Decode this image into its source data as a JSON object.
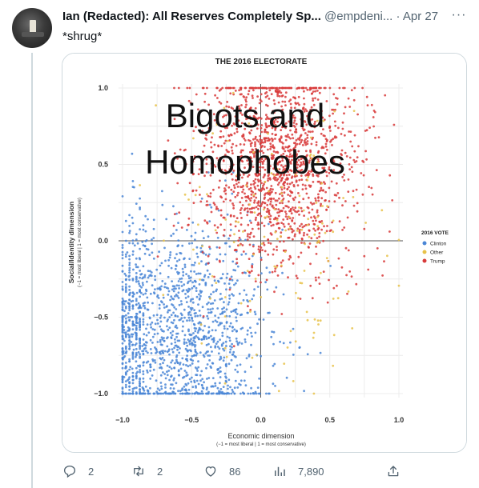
{
  "tweet": {
    "display_name": "Ian (Redacted): All Reserves Completely Sp...",
    "handle": "@empdeni...",
    "separator": "·",
    "date": "Apr 27",
    "text": "*shrug*"
  },
  "actions": {
    "replies": "2",
    "retweets": "2",
    "likes": "86",
    "views": "7,890"
  },
  "image": {
    "overlay_text_line1": "Bigots and",
    "overlay_text_line2": "Homophobes"
  },
  "chart_data": {
    "type": "scatter",
    "title": "THE 2016 ELECTORATE",
    "xlabel": "Economic dimension",
    "xlabel_sub": "(−1 = most liberal | 1 = most conservative)",
    "ylabel": "Social/Identity dimension",
    "ylabel_sub": "(−1 = most liberal | 1 = most conservative)",
    "xlim": [
      -1.0,
      1.0
    ],
    "ylim": [
      -1.0,
      1.0
    ],
    "x_ticks": [
      "−1.0",
      "−0.5",
      "0.0",
      "0.5",
      "1.0"
    ],
    "y_ticks": [
      "1.0",
      "0.5",
      "0.0",
      "−0.5",
      "−1.0"
    ],
    "grid": true,
    "legend_position": "right",
    "legend_title": "2016 VOTE",
    "series": [
      {
        "name": "Clinton",
        "color": "#4a86d6",
        "center": [
          -0.55,
          -0.6
        ],
        "spread": [
          0.3,
          0.35
        ],
        "count": 1500
      },
      {
        "name": "Other",
        "color": "#e8c24a",
        "center": [
          0.15,
          0.0
        ],
        "spread": [
          0.4,
          0.45
        ],
        "count": 160
      },
      {
        "name": "Trump",
        "color": "#d83a3a",
        "center": [
          0.12,
          0.5
        ],
        "spread": [
          0.28,
          0.35
        ],
        "count": 1500
      }
    ]
  }
}
